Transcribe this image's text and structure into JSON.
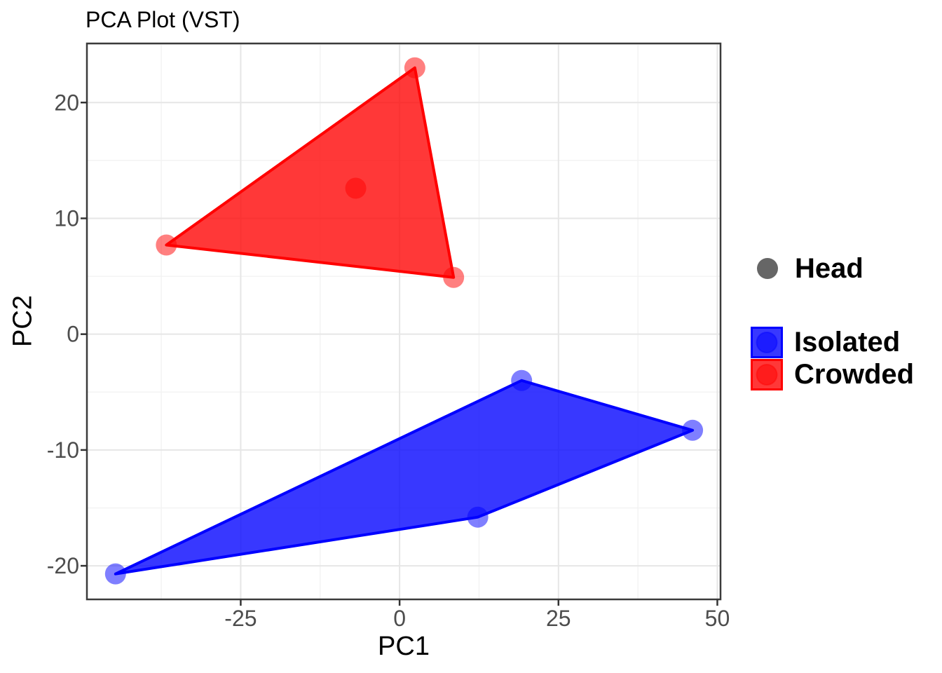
{
  "title": "PCA Plot (VST)",
  "chart_data": {
    "type": "scatter",
    "title": "PCA Plot (VST)",
    "xlabel": "PC1",
    "ylabel": "PC2",
    "xlim": [
      -49.2,
      50.5
    ],
    "ylim": [
      -22.9,
      25.1
    ],
    "x_major_ticks": [
      -25,
      0,
      25,
      50
    ],
    "y_major_ticks": [
      -20,
      -10,
      0,
      10,
      20
    ],
    "x_minor_gridlines": [
      -37.5,
      -12.5,
      12.5,
      37.5
    ],
    "y_minor_gridlines": [
      -15,
      -5,
      5,
      15,
      25
    ],
    "grid": "on",
    "legend_position": "right",
    "series": [
      {
        "name": "Crowded",
        "color": "#FF0000",
        "points": [
          [
            -36.7,
            7.7
          ],
          [
            -6.9,
            12.6
          ],
          [
            2.4,
            23.0
          ],
          [
            8.5,
            4.9
          ]
        ],
        "hull": [
          [
            -36.7,
            7.7
          ],
          [
            2.4,
            23.0
          ],
          [
            8.5,
            4.9
          ]
        ]
      },
      {
        "name": "Isolated",
        "color": "#0000FF",
        "points": [
          [
            -44.7,
            -20.7
          ],
          [
            12.3,
            -15.8
          ],
          [
            19.2,
            -4.0
          ],
          [
            46.1,
            -8.3
          ]
        ],
        "hull": [
          [
            -44.7,
            -20.7
          ],
          [
            19.2,
            -4.0
          ],
          [
            46.1,
            -8.3
          ],
          [
            12.3,
            -15.8
          ]
        ]
      }
    ]
  },
  "legend": {
    "shape": {
      "label": "Head",
      "color": "#666666"
    },
    "groups": [
      {
        "label": "Isolated",
        "color": "#0000FF"
      },
      {
        "label": "Crowded",
        "color": "#FF0000"
      }
    ]
  },
  "style": {
    "point_opacity": 0.5,
    "hull_fill_opacity": 0.78,
    "grid_major_color": "#E6E6E6",
    "grid_minor_color": "#F3F3F3",
    "panel_border_color": "#3B3B3B",
    "tick_color": "#333333",
    "tick_label_color": "#4D4D4D",
    "text_color": "#000000"
  }
}
